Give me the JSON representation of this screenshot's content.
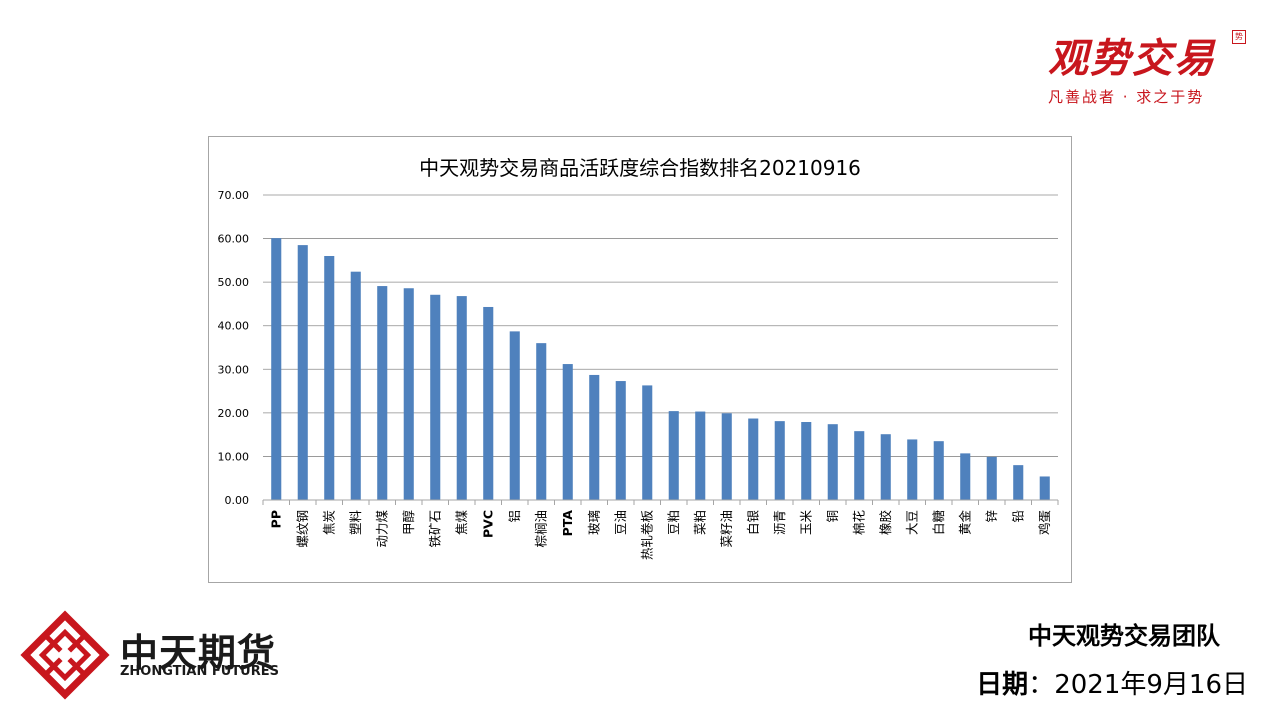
{
  "brand": {
    "title": "观势交易",
    "slogan": "凡善战者 · 求之于势",
    "seal": "势",
    "color": "#c8161d"
  },
  "company": {
    "name": "中天期货",
    "name_en": "ZHONGTIAN FUTURES",
    "logo_color": "#c8161d"
  },
  "footer": {
    "team": "中天观势交易团队",
    "date_label": "日期",
    "date_sep": "：",
    "date_value": "2021年9月16日"
  },
  "chart_data": {
    "type": "bar",
    "title": "中天观势交易商品活跃度综合指数排名20210916",
    "xlabel": "",
    "ylabel": "",
    "ylim": [
      0,
      70
    ],
    "yticks": [
      "0.00",
      "10.00",
      "20.00",
      "30.00",
      "40.00",
      "50.00",
      "60.00",
      "70.00"
    ],
    "grid": true,
    "legend": "none",
    "bar_color": "#4f81bd",
    "categories": [
      "PP",
      "螺纹钢",
      "焦炭",
      "塑料",
      "动力煤",
      "甲醇",
      "铁矿石",
      "焦煤",
      "PVC",
      "铝",
      "棕榈油",
      "PTA",
      "玻璃",
      "豆油",
      "热轧卷板",
      "豆粕",
      "菜粕",
      "菜籽油",
      "白银",
      "沥青",
      "玉米",
      "铜",
      "棉花",
      "橡胶",
      "大豆",
      "白糖",
      "黄金",
      "锌",
      "铅",
      "鸡蛋"
    ],
    "values": [
      60.1,
      58.5,
      56.0,
      52.4,
      49.1,
      48.6,
      47.1,
      46.8,
      44.3,
      38.7,
      36.0,
      31.2,
      28.7,
      27.3,
      26.3,
      20.4,
      20.3,
      19.9,
      18.7,
      18.1,
      17.9,
      17.4,
      15.8,
      15.1,
      13.9,
      13.5,
      10.7,
      9.9,
      8.0,
      5.4
    ]
  }
}
